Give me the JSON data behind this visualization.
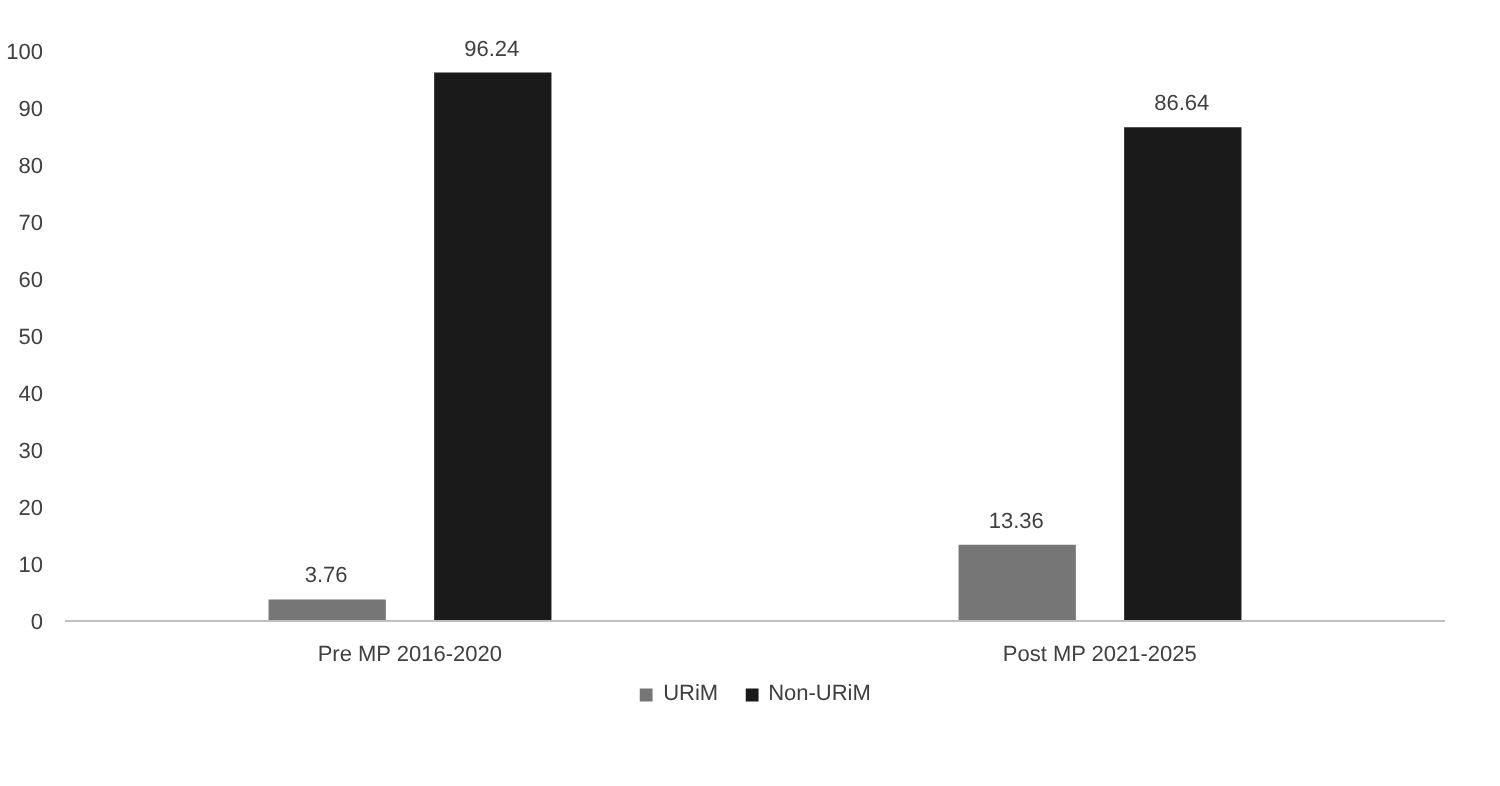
{
  "chart_data": {
    "type": "bar",
    "categories": [
      "Pre MP 2016-2020",
      "Post MP 2021-2025"
    ],
    "series": [
      {
        "name": "URiM",
        "color": "#767676",
        "values": [
          3.76,
          13.36
        ]
      },
      {
        "name": "Non-URiM",
        "color": "#1a1a1a",
        "values": [
          96.24,
          86.64
        ]
      }
    ],
    "ylim": [
      0,
      100
    ],
    "yticks": [
      0,
      10,
      20,
      30,
      40,
      50,
      60,
      70,
      80,
      90,
      100
    ],
    "data_labels": true,
    "legend": "bottom",
    "grid": false
  }
}
